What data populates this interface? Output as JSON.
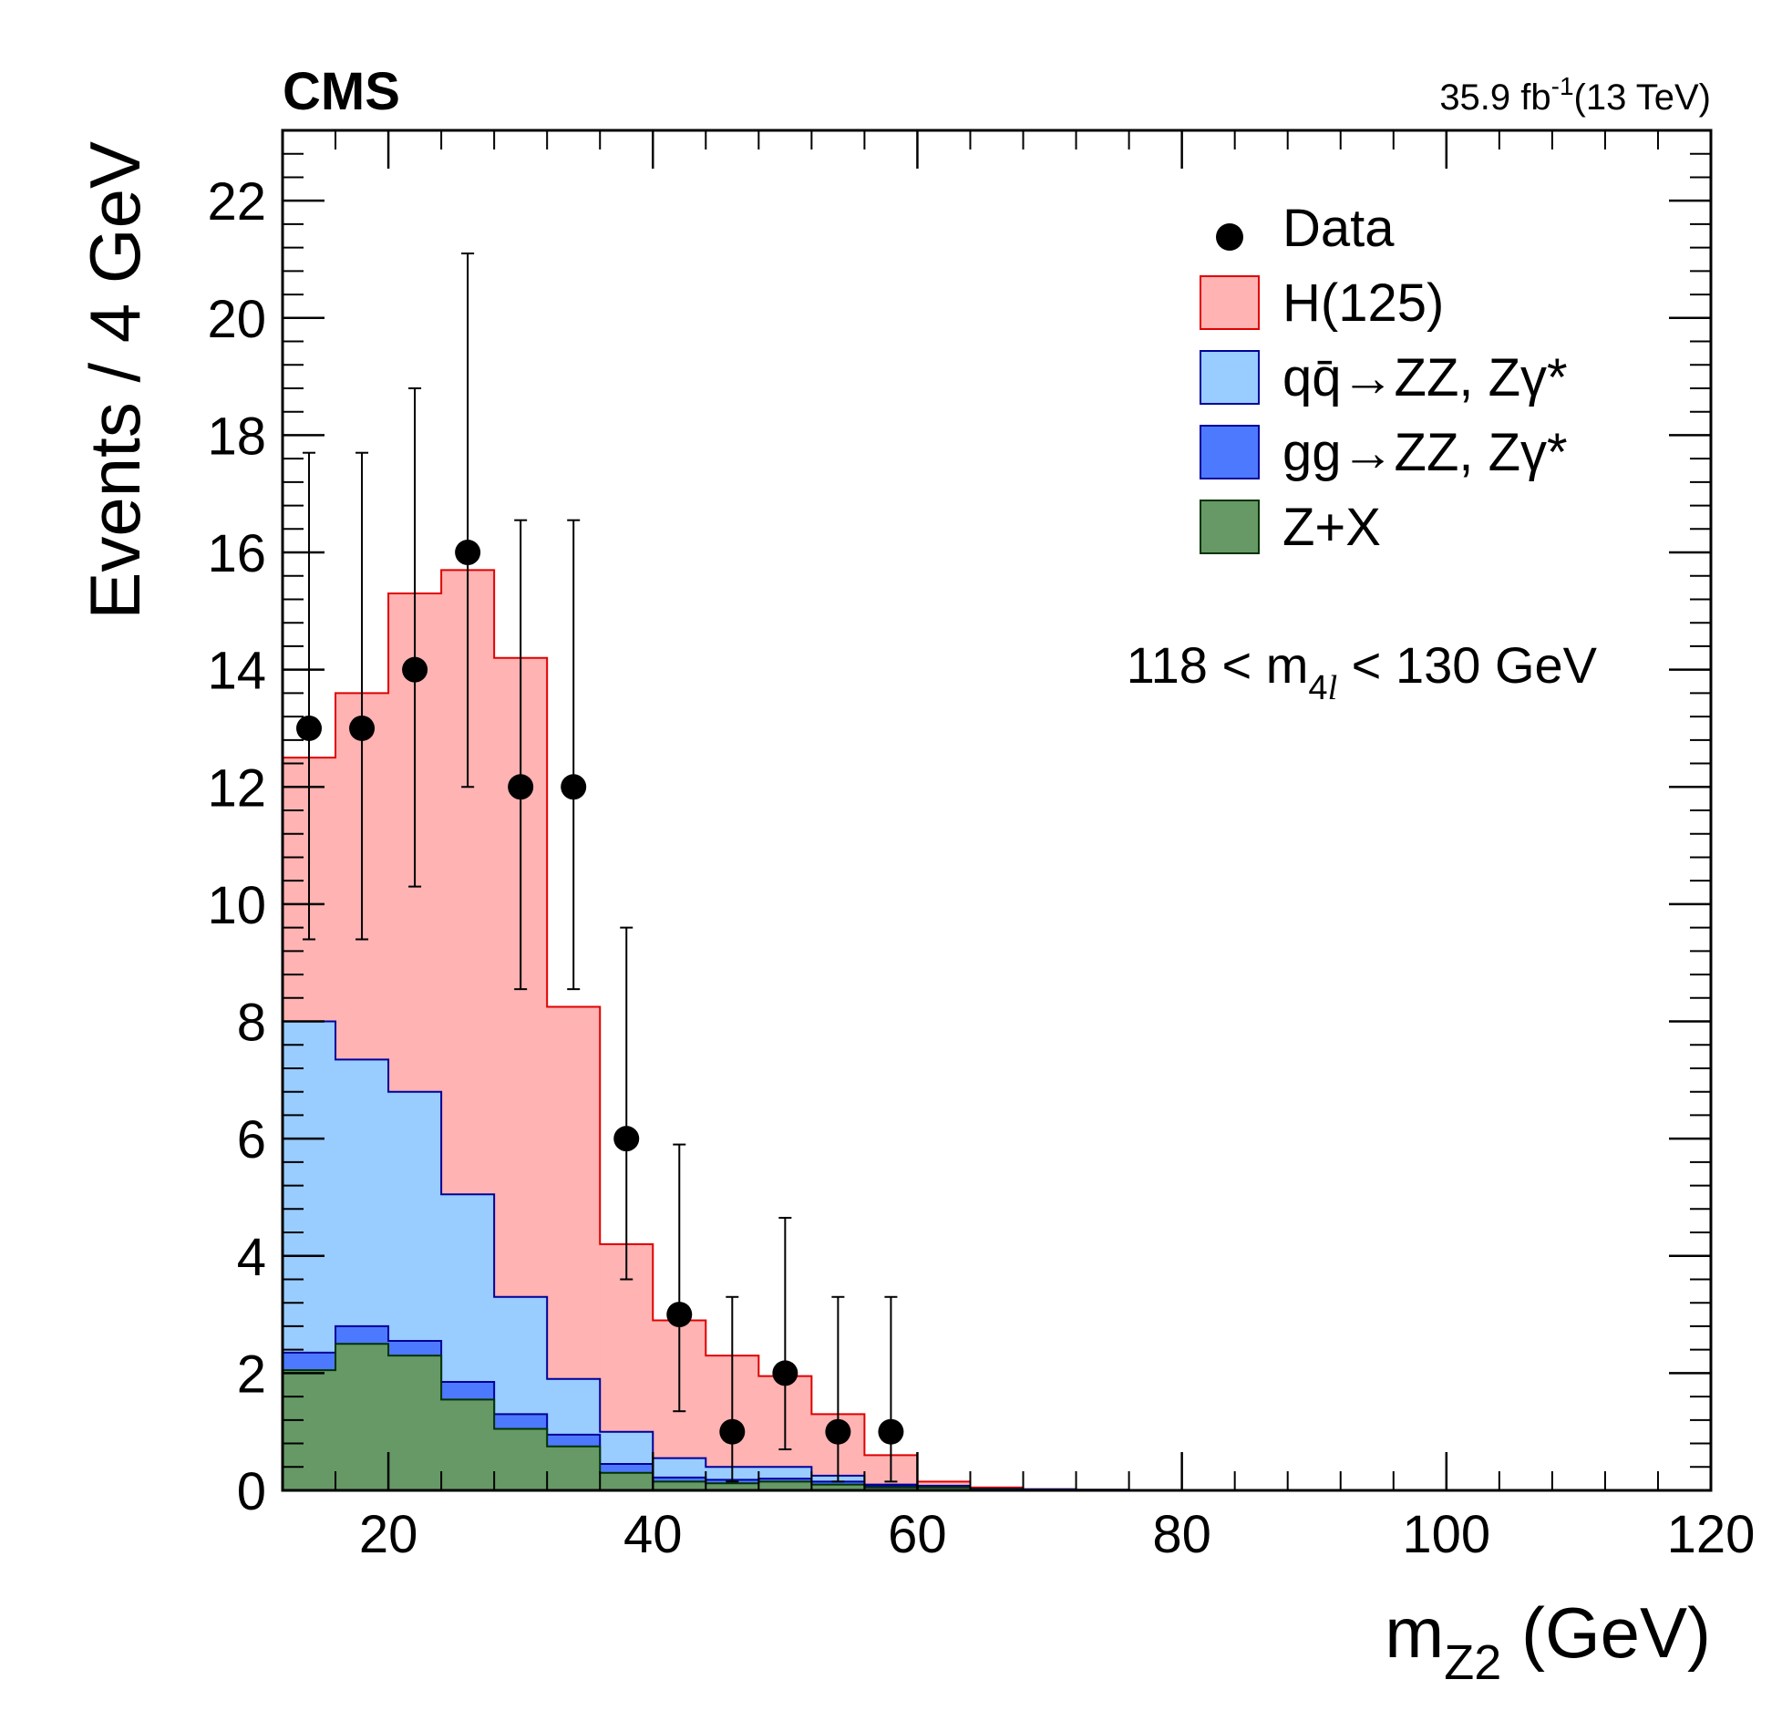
{
  "chart_data": {
    "type": "bar",
    "subtype": "stacked-histogram-with-data-points",
    "experiment": "CMS",
    "lumi": {
      "value": "35.9 fb",
      "exponent": "-1",
      "energy": "(13 TeV)"
    },
    "xlabel": {
      "main": "m",
      "sub": "Z2",
      "unit": " (GeV)"
    },
    "ylabel": "Events / 4 GeV",
    "xlim": [
      12,
      120
    ],
    "ylim": [
      0,
      23.2
    ],
    "x_ticks": [
      20,
      40,
      60,
      80,
      100,
      120
    ],
    "y_ticks": [
      0,
      2,
      4,
      6,
      8,
      10,
      12,
      14,
      16,
      18,
      20,
      22
    ],
    "selection": {
      "pre": "118 < m",
      "sub": "4",
      "sub_italic": "l",
      "post": " < 130 GeV"
    },
    "bin_edges": [
      12,
      16,
      20,
      24,
      28,
      32,
      36,
      40,
      44,
      48,
      52,
      56,
      60,
      64,
      68,
      72,
      76,
      80,
      84,
      88,
      92,
      96,
      100,
      104,
      108,
      112,
      116,
      120
    ],
    "stack_totals": [
      {
        "name": "Z+X",
        "values": [
          2.05,
          2.5,
          2.3,
          1.55,
          1.05,
          0.75,
          0.3,
          0.15,
          0.12,
          0.15,
          0.1,
          0.05,
          0.05,
          0.02,
          0.01,
          0.01,
          0,
          0,
          0,
          0,
          0,
          0,
          0,
          0,
          0,
          0,
          0
        ]
      },
      {
        "name": "gg→ZZ, Zγ*",
        "values": [
          2.35,
          2.8,
          2.55,
          1.85,
          1.3,
          0.95,
          0.45,
          0.22,
          0.18,
          0.2,
          0.15,
          0.08,
          0.06,
          0.02,
          0.01,
          0.01,
          0,
          0,
          0,
          0,
          0,
          0,
          0,
          0,
          0,
          0,
          0
        ]
      },
      {
        "name": "qq̄→ZZ, Zγ*",
        "values": [
          8.0,
          7.35,
          6.8,
          5.05,
          3.3,
          1.9,
          1.0,
          0.55,
          0.4,
          0.4,
          0.25,
          0.1,
          0.08,
          0.03,
          0.02,
          0.01,
          0,
          0,
          0,
          0,
          0,
          0,
          0,
          0,
          0,
          0,
          0
        ]
      },
      {
        "name": "H(125)",
        "values": [
          12.5,
          13.6,
          15.3,
          15.7,
          14.2,
          8.25,
          4.2,
          2.9,
          2.3,
          1.95,
          1.3,
          0.6,
          0.15,
          0.05,
          0.02,
          0.01,
          0,
          0,
          0,
          0,
          0,
          0,
          0,
          0,
          0,
          0,
          0
        ]
      }
    ],
    "data_points": {
      "x": [
        14,
        18,
        22,
        26,
        30,
        34,
        38,
        42,
        46,
        50,
        54,
        58
      ],
      "y": [
        13,
        13,
        14,
        16,
        12,
        12,
        6,
        3,
        1,
        2,
        1,
        1
      ],
      "err_low": [
        3.6,
        3.6,
        3.7,
        4.0,
        3.45,
        3.45,
        2.4,
        1.65,
        0.85,
        1.3,
        0.85,
        0.85
      ],
      "err_high": [
        4.7,
        4.7,
        4.8,
        5.1,
        4.55,
        4.55,
        3.6,
        2.9,
        2.3,
        2.65,
        2.3,
        2.3
      ]
    },
    "legend": [
      {
        "label": "Data",
        "kind": "marker"
      },
      {
        "label": "H(125)",
        "kind": "box",
        "fill": "#ffb3b3",
        "stroke": "#e00000"
      },
      {
        "label": "qq̄→ZZ, Zγ*",
        "kind": "box",
        "fill": "#99ccff",
        "stroke": "#000099"
      },
      {
        "label": "gg→ZZ, Zγ*",
        "kind": "box",
        "fill": "#4d79ff",
        "stroke": "#000099"
      },
      {
        "label": "Z+X",
        "kind": "box",
        "fill": "#669966",
        "stroke": "#003300"
      }
    ],
    "legend_position": "top-right",
    "colors": {
      "higgs_fill": "#ffb3b3",
      "higgs_line": "#e00000",
      "qqzz_fill": "#99ccff",
      "qqzz_line": "#000099",
      "ggzz_fill": "#4d79ff",
      "ggzz_line": "#000099",
      "zx_fill": "#669966",
      "zx_line": "#003300"
    }
  }
}
